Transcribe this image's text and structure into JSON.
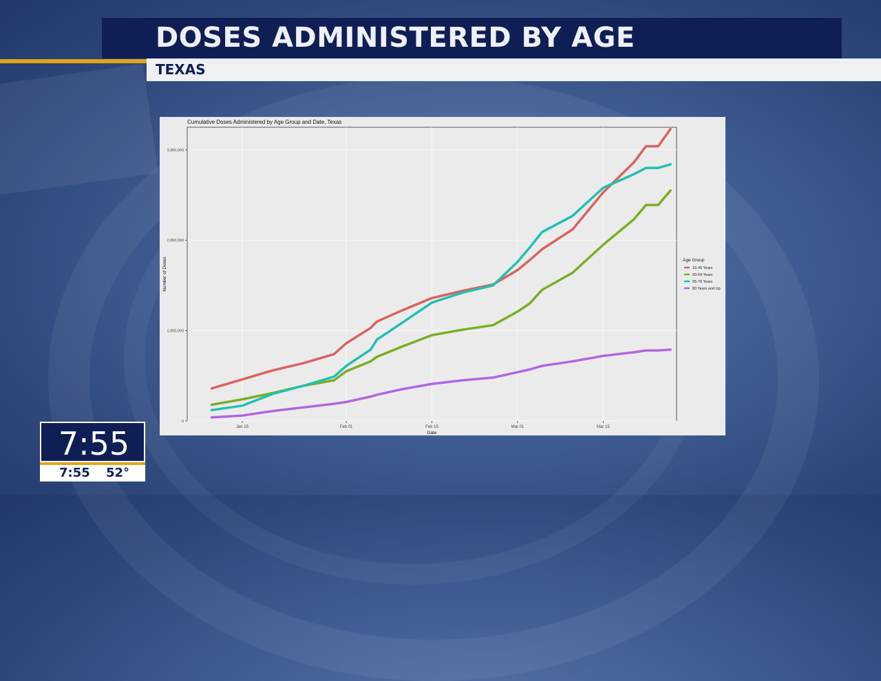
{
  "header": {
    "title": "DOSES ADMINISTERED BY AGE",
    "subtitle": "TEXAS"
  },
  "clock": {
    "time_large": "7:55",
    "time_small": "7:55",
    "temperature": "52°"
  },
  "colors": {
    "banner": "#0f1f55",
    "accent": "#e0a51c",
    "panel": "#ebebeb"
  },
  "chart_data": {
    "type": "line",
    "title": "Cumulative Doses Administered by Age Group and Date, Texas",
    "xlabel": "Date",
    "ylabel": "Number of Doses",
    "x_range": [
      "2021-01-06",
      "2021-03-27"
    ],
    "ylim": [
      0,
      3250000
    ],
    "x_ticks": [
      {
        "date": "2021-01-15",
        "label": "Jan 15"
      },
      {
        "date": "2021-02-01",
        "label": "Feb 01"
      },
      {
        "date": "2021-02-15",
        "label": "Feb 15"
      },
      {
        "date": "2021-03-01",
        "label": "Mar 01"
      },
      {
        "date": "2021-03-15",
        "label": "Mar 15"
      }
    ],
    "y_ticks": [
      {
        "value": 0,
        "label": "0"
      },
      {
        "value": 1000000,
        "label": "1,000,000"
      },
      {
        "value": 2000000,
        "label": "2,000,000"
      },
      {
        "value": 3000000,
        "label": "3,000,000"
      }
    ],
    "grid": true,
    "legend": {
      "title": "Age Group",
      "placement": "right"
    },
    "x": [
      "2021-01-10",
      "2021-01-15",
      "2021-01-20",
      "2021-01-25",
      "2021-01-30",
      "2021-02-01",
      "2021-02-05",
      "2021-02-06",
      "2021-02-10",
      "2021-02-15",
      "2021-02-20",
      "2021-02-25",
      "2021-03-01",
      "2021-03-03",
      "2021-03-05",
      "2021-03-10",
      "2021-03-15",
      "2021-03-20",
      "2021-03-22",
      "2021-03-24",
      "2021-03-26"
    ],
    "series": [
      {
        "name": "16-49 Years",
        "color": "#d9625f",
        "values": [
          360000,
          460000,
          560000,
          640000,
          740000,
          860000,
          1030000,
          1100000,
          1220000,
          1360000,
          1440000,
          1510000,
          1670000,
          1780000,
          1900000,
          2120000,
          2530000,
          2860000,
          3040000,
          3040000,
          3230000
        ]
      },
      {
        "name": "50-64 Years",
        "color": "#7aae23",
        "values": [
          180000,
          240000,
          310000,
          390000,
          450000,
          550000,
          660000,
          710000,
          820000,
          950000,
          1010000,
          1060000,
          1210000,
          1300000,
          1450000,
          1640000,
          1950000,
          2230000,
          2390000,
          2390000,
          2550000
        ]
      },
      {
        "name": "65-79 Years",
        "color": "#22bfb2",
        "values": [
          120000,
          170000,
          300000,
          390000,
          490000,
          610000,
          790000,
          900000,
          1080000,
          1310000,
          1420000,
          1500000,
          1760000,
          1920000,
          2090000,
          2270000,
          2580000,
          2730000,
          2800000,
          2800000,
          2840000
        ]
      },
      {
        "name": "80 Years and Up",
        "color": "#b165e0",
        "values": [
          40000,
          60000,
          110000,
          150000,
          190000,
          210000,
          270000,
          290000,
          350000,
          410000,
          450000,
          480000,
          540000,
          570000,
          610000,
          660000,
          720000,
          760000,
          780000,
          780000,
          790000
        ]
      }
    ]
  }
}
